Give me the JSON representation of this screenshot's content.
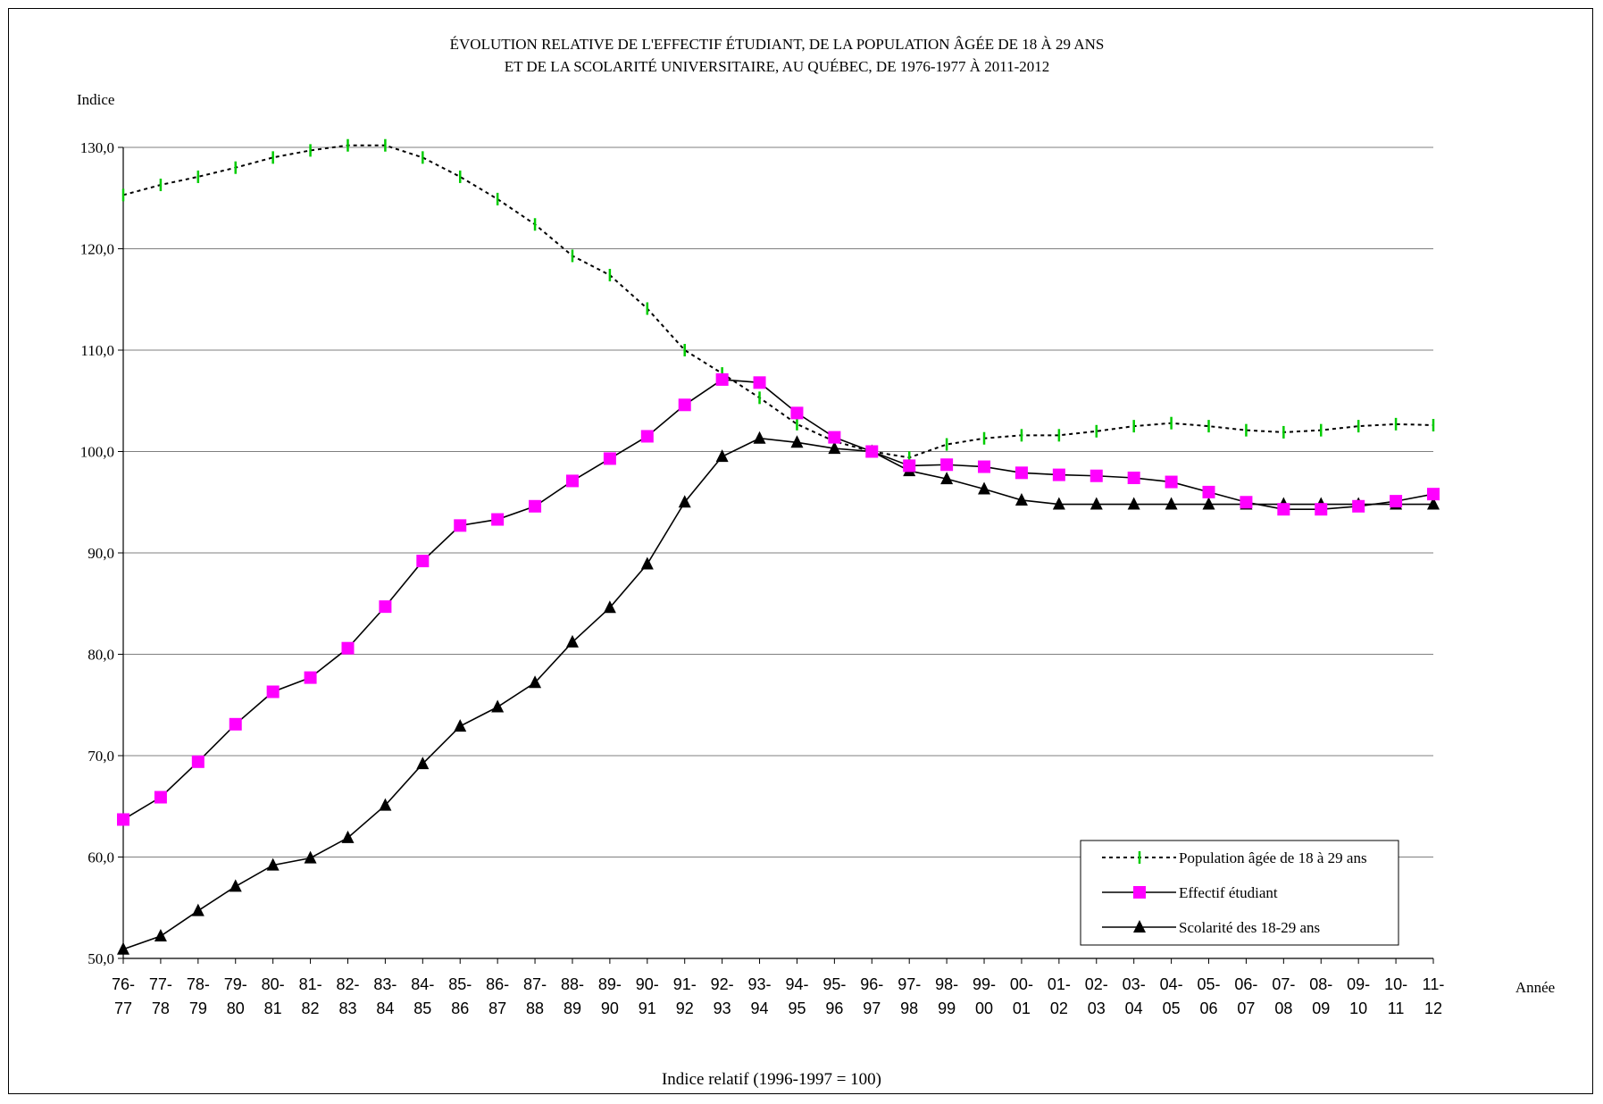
{
  "chart_data": {
    "type": "line",
    "title_lines": [
      "ÉVOLUTION RELATIVE DE L'EFFECTIF ÉTUDIANT, DE LA POPULATION ÂGÉE DE 18 À 29 ANS",
      "ET DE LA SCOLARITÉ UNIVERSITAIRE, AU QUÉBEC, DE 1976-1977 À 2011-2012"
    ],
    "ylabel": "Indice",
    "xlabel": "Année",
    "footnote": "Indice relatif (1996-1997 = 100)",
    "ylim": [
      50,
      130
    ],
    "yticks": [
      "50,0",
      "60,0",
      "70,0",
      "80,0",
      "90,0",
      "100,0",
      "110,0",
      "120,0",
      "130,0"
    ],
    "categories": [
      [
        "76-",
        "77"
      ],
      [
        "77-",
        "78"
      ],
      [
        "78-",
        "79"
      ],
      [
        "79-",
        "80"
      ],
      [
        "80-",
        "81"
      ],
      [
        "81-",
        "82"
      ],
      [
        "82-",
        "83"
      ],
      [
        "83-",
        "84"
      ],
      [
        "84-",
        "85"
      ],
      [
        "85-",
        "86"
      ],
      [
        "86-",
        "87"
      ],
      [
        "87-",
        "88"
      ],
      [
        "88-",
        "89"
      ],
      [
        "89-",
        "90"
      ],
      [
        "90-",
        "91"
      ],
      [
        "91-",
        "92"
      ],
      [
        "92-",
        "93"
      ],
      [
        "93-",
        "94"
      ],
      [
        "94-",
        "95"
      ],
      [
        "95-",
        "96"
      ],
      [
        "96-",
        "97"
      ],
      [
        "97-",
        "98"
      ],
      [
        "98-",
        "99"
      ],
      [
        "99-",
        "00"
      ],
      [
        "00-",
        "01"
      ],
      [
        "01-",
        "02"
      ],
      [
        "02-",
        "03"
      ],
      [
        "03-",
        "04"
      ],
      [
        "04-",
        "05"
      ],
      [
        "05-",
        "06"
      ],
      [
        "06-",
        "07"
      ],
      [
        "07-",
        "08"
      ],
      [
        "08-",
        "09"
      ],
      [
        "09-",
        "10"
      ],
      [
        "10-",
        "11"
      ],
      [
        "11-",
        "12"
      ]
    ],
    "grid": "horizontal",
    "legend_position": "bottom-right",
    "series": [
      {
        "name": "Population âgée de 18 à 29 ans",
        "color": "#00cc00",
        "marker": "dash",
        "line_style": "dotted",
        "values": [
          125.3,
          126.3,
          127.1,
          128.0,
          129.0,
          129.7,
          130.2,
          130.2,
          129.0,
          127.1,
          124.9,
          122.4,
          119.3,
          117.4,
          114.1,
          110.0,
          107.7,
          105.3,
          102.7,
          101.0,
          100.0,
          99.4,
          100.7,
          101.3,
          101.6,
          101.6,
          102.0,
          102.5,
          102.8,
          102.5,
          102.1,
          101.9,
          102.1,
          102.5,
          102.7,
          102.6
        ]
      },
      {
        "name": "Effectif étudiant",
        "color": "#ff00ff",
        "marker": "square",
        "line_style": "solid",
        "values": [
          63.7,
          65.9,
          69.4,
          73.1,
          76.3,
          77.7,
          80.6,
          84.7,
          89.2,
          92.7,
          93.3,
          94.6,
          97.1,
          99.3,
          101.5,
          104.6,
          107.1,
          106.8,
          103.8,
          101.4,
          100.0,
          98.6,
          98.7,
          98.5,
          97.9,
          97.7,
          97.6,
          97.4,
          97.0,
          96.0,
          95.0,
          94.3,
          94.3,
          94.6,
          95.1,
          95.8
        ]
      },
      {
        "name": "Scolarité des 18-29 ans",
        "color": "#000000",
        "marker": "triangle",
        "line_style": "solid",
        "values": [
          50.9,
          52.2,
          54.7,
          57.1,
          59.2,
          59.9,
          61.9,
          65.1,
          69.2,
          72.9,
          74.8,
          77.2,
          81.2,
          84.6,
          88.9,
          95.0,
          99.5,
          101.3,
          100.9,
          100.3,
          100.0,
          98.1,
          97.3,
          96.3,
          95.2,
          94.8,
          94.8,
          94.8,
          94.8,
          94.8,
          94.8,
          94.8,
          94.8,
          94.8,
          94.8,
          94.8
        ]
      }
    ]
  }
}
